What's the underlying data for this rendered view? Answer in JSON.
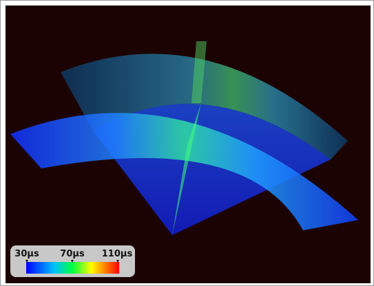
{
  "colorbar": {
    "ticks": [
      "30µs",
      "70µs",
      "110µs"
    ]
  }
}
